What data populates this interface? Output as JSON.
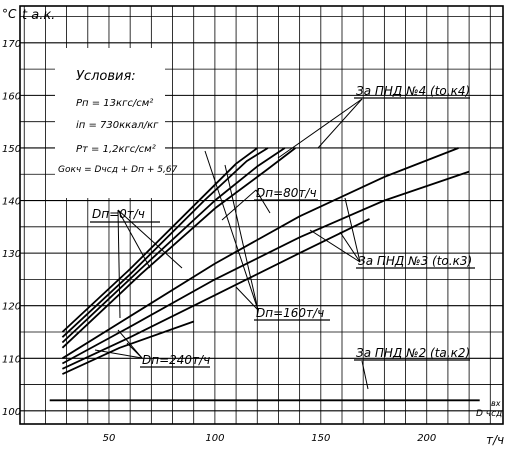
{
  "chart_data": {
    "type": "line",
    "y_unit": "°C",
    "y_symbol": "t a.к.",
    "x_unit": "т/ч",
    "x_symbol": "D чсд",
    "x_symbol_superscript": "вх",
    "xlim": [
      8,
      236
    ],
    "ylim": [
      97.5,
      177
    ],
    "x_ticks": [
      50,
      100,
      150,
      200
    ],
    "y_ticks": [
      100,
      110,
      120,
      130,
      140,
      150,
      160,
      170
    ],
    "grid": true,
    "conditions": {
      "title": "Условия:",
      "lines": [
        "Pп = 13кгс/см²",
        "iп = 730ккал/кг",
        "Pт = 1,2кгс/см²",
        "Gокч = Dчсд + Dп + 5,67"
      ]
    },
    "labels": {
      "dn0": "Dп=0т/ч",
      "dn80": "Dп=80т/ч",
      "dn160": "Dп=160т/ч",
      "dn240": "Dп=240т/ч",
      "pnd4": "За ПНД №4 (tо.к4)",
      "pnd3": "За ПНД №3 (tо.к3)",
      "pnd2": "За ПНД №2 (tа.к2)"
    },
    "series": [
      {
        "group": "pnd4",
        "x": [
          28,
          60,
          90,
          110,
          120
        ],
        "y": [
          115,
          127,
          139,
          147,
          150
        ]
      },
      {
        "group": "pnd4",
        "x": [
          28,
          60,
          95,
          115,
          125
        ],
        "y": [
          114,
          126,
          140,
          147.5,
          150
        ]
      },
      {
        "group": "pnd4",
        "x": [
          28,
          65,
          100,
          120,
          133
        ],
        "y": [
          113,
          127,
          140,
          146.5,
          150
        ]
      },
      {
        "group": "pnd4",
        "x": [
          28,
          65,
          100,
          125,
          138
        ],
        "y": [
          112,
          126,
          138.5,
          146,
          150
        ]
      },
      {
        "group": "pnd4",
        "x": [
          28,
          60,
          100,
          140,
          180,
          215
        ],
        "y": [
          110,
          118,
          128,
          137,
          144.5,
          150
        ]
      },
      {
        "group": "pnd3",
        "x": [
          28,
          60,
          100,
          140,
          180,
          220
        ],
        "y": [
          109,
          116,
          125,
          133,
          140,
          145.5
        ]
      },
      {
        "group": "pnd3",
        "x": [
          28,
          60,
          100,
          140,
          173
        ],
        "y": [
          108,
          114,
          122,
          130,
          136.5
        ]
      },
      {
        "group": "pnd3",
        "x": [
          28,
          55,
          90
        ],
        "y": [
          107,
          112,
          117
        ]
      },
      {
        "group": "pnd2",
        "x": [
          22,
          225
        ],
        "y": [
          102,
          102
        ]
      }
    ]
  }
}
